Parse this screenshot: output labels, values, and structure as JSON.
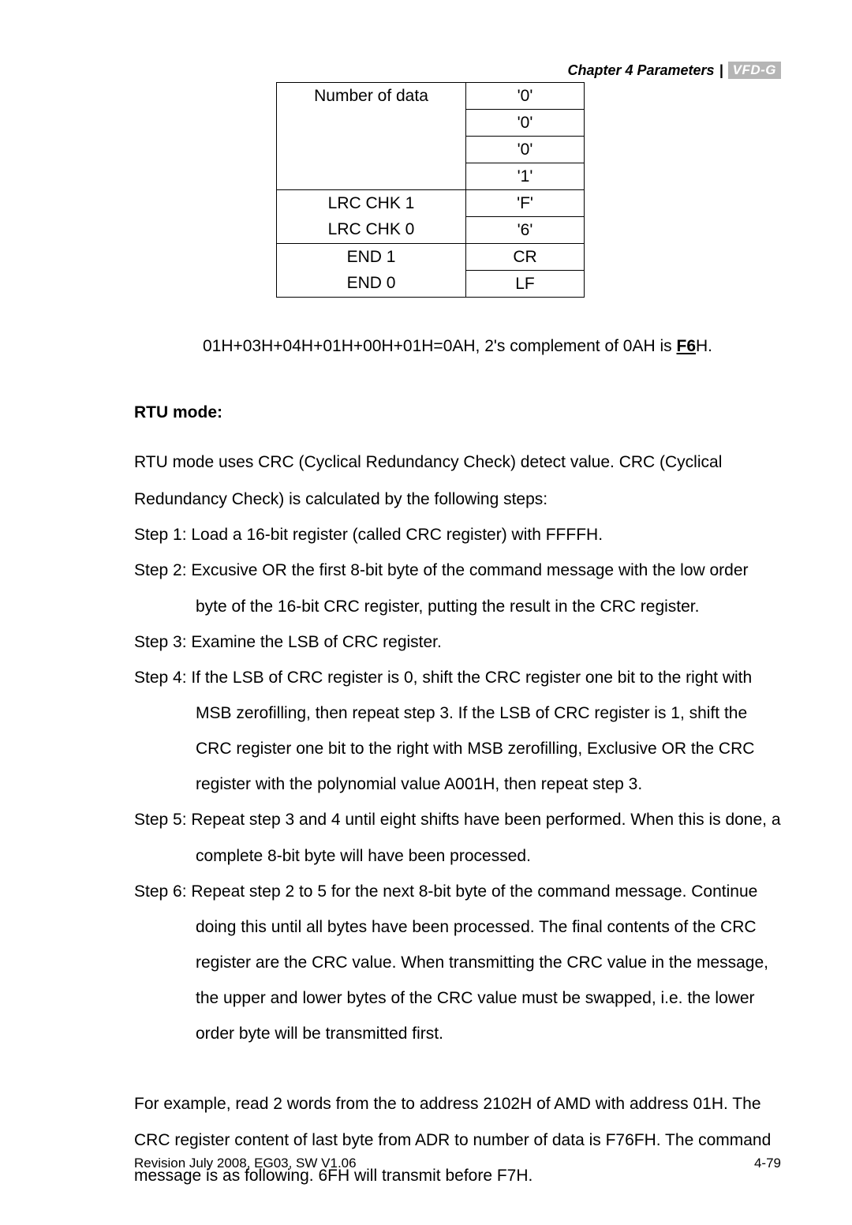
{
  "header": {
    "chapter": "Chapter 4  Parameters",
    "separator": "|",
    "badge": "VFD-G"
  },
  "table": {
    "rows": [
      {
        "label": "Number of data",
        "value": "'0'",
        "labelBorders": "top",
        "valueBorders": "full"
      },
      {
        "label": "",
        "value": "'0'",
        "labelBorders": "none",
        "valueBorders": "full"
      },
      {
        "label": "",
        "value": "'0'",
        "labelBorders": "none",
        "valueBorders": "full"
      },
      {
        "label": "",
        "value": "'1'",
        "labelBorders": "bottom",
        "valueBorders": "full"
      },
      {
        "label": "LRC CHK 1",
        "value": "'F'",
        "labelBorders": "top",
        "valueBorders": "full"
      },
      {
        "label": "LRC CHK 0",
        "value": "'6'",
        "labelBorders": "bottom",
        "valueBorders": "full"
      },
      {
        "label": "END 1",
        "value": "CR",
        "labelBorders": "top",
        "valueBorders": "full"
      },
      {
        "label": "END 0",
        "value": "LF",
        "labelBorders": "bottom",
        "valueBorders": "full"
      }
    ]
  },
  "calcLine": {
    "prefix": "01H+03H+04H+01H+00H+01H=0AH, 2's complement of 0AH is ",
    "bold": "F6",
    "suffix": "H."
  },
  "sectionTitle": "RTU mode:",
  "intro1": "RTU mode uses CRC (Cyclical Redundancy Check) detect value. CRC (Cyclical",
  "intro2": "Redundancy Check) is calculated by the following steps:",
  "steps": {
    "s1": "Step 1: Load a 16-bit register (called CRC register) with FFFFH.",
    "s2": "Step 2: Excusive OR the first 8-bit byte of the command message with the low order byte of the 16-bit CRC register, putting the result in the CRC register.",
    "s3": "Step 3: Examine the LSB of CRC register.",
    "s4": "Step 4: If the LSB of CRC register is 0, shift the CRC register one bit to the right with MSB zerofilling, then repeat step 3. If the LSB of CRC register is 1, shift the CRC register one bit to the right with MSB zerofilling, Exclusive OR the CRC register with the polynomial value A001H, then repeat step 3.",
    "s5": "Step 5: Repeat step 3 and 4 until eight shifts have been performed. When this is done, a complete 8-bit byte will have been processed.",
    "s6": "Step 6: Repeat step 2 to 5 for the next 8-bit byte of the command message. Continue doing this until all bytes have been processed. The final contents of the CRC register are the CRC value. When transmitting the CRC value in the message, the upper and lower bytes of the CRC value must be swapped, i.e. the lower order byte will be transmitted first."
  },
  "examplePara": "For example, read 2 words from the to address 2102H of AMD with address 01H. The CRC register content of last byte from ADR to number of data is F76FH. The command message is as following. 6FH will transmit before F7H.",
  "footer": {
    "left": "Revision July 2008, EG03, SW V1.06",
    "right": "4-79"
  }
}
